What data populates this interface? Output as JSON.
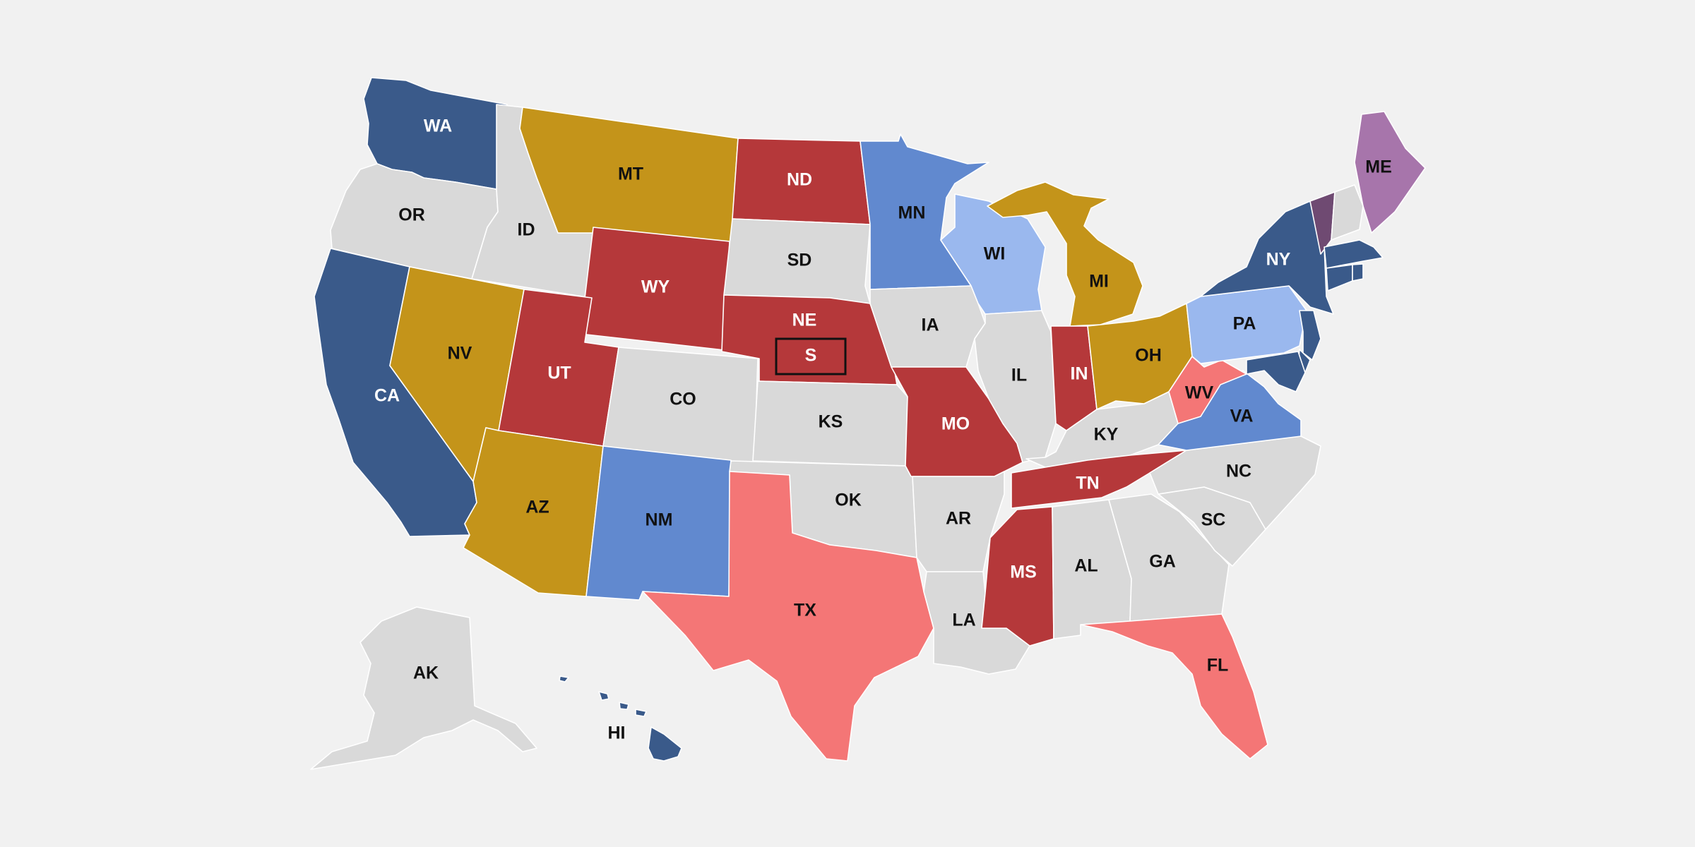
{
  "colors": {
    "background": "#f1f1f1",
    "gray": "#d9d9d9",
    "dark_blue": "#3a5a8a",
    "mid_blue": "#6189cf",
    "light_blue": "#9ab8ee",
    "dark_red": "#b5383a",
    "light_red": "#f47676",
    "gold": "#c4941a",
    "purple": "#a775ab",
    "dark_purple": "#6f4a72"
  },
  "states": [
    {
      "abbr": "WA",
      "fill": "dark_blue",
      "label_color": "#ffffff"
    },
    {
      "abbr": "OR",
      "fill": "gray",
      "label_color": "#111111"
    },
    {
      "abbr": "CA",
      "fill": "dark_blue",
      "label_color": "#ffffff"
    },
    {
      "abbr": "ID",
      "fill": "gray",
      "label_color": "#111111"
    },
    {
      "abbr": "NV",
      "fill": "gold",
      "label_color": "#111111"
    },
    {
      "abbr": "MT",
      "fill": "gold",
      "label_color": "#111111"
    },
    {
      "abbr": "WY",
      "fill": "dark_red",
      "label_color": "#ffffff"
    },
    {
      "abbr": "UT",
      "fill": "dark_red",
      "label_color": "#ffffff"
    },
    {
      "abbr": "AZ",
      "fill": "gold",
      "label_color": "#111111"
    },
    {
      "abbr": "CO",
      "fill": "gray",
      "label_color": "#111111"
    },
    {
      "abbr": "NM",
      "fill": "mid_blue",
      "label_color": "#111111"
    },
    {
      "abbr": "ND",
      "fill": "dark_red",
      "label_color": "#ffffff"
    },
    {
      "abbr": "SD",
      "fill": "gray",
      "label_color": "#111111"
    },
    {
      "abbr": "NE",
      "fill": "dark_red",
      "label_color": "#ffffff"
    },
    {
      "abbr": "KS",
      "fill": "gray",
      "label_color": "#111111"
    },
    {
      "abbr": "OK",
      "fill": "gray",
      "label_color": "#111111"
    },
    {
      "abbr": "TX",
      "fill": "light_red",
      "label_color": "#111111"
    },
    {
      "abbr": "MN",
      "fill": "mid_blue",
      "label_color": "#111111"
    },
    {
      "abbr": "IA",
      "fill": "gray",
      "label_color": "#111111"
    },
    {
      "abbr": "MO",
      "fill": "dark_red",
      "label_color": "#ffffff"
    },
    {
      "abbr": "AR",
      "fill": "gray",
      "label_color": "#111111"
    },
    {
      "abbr": "LA",
      "fill": "gray",
      "label_color": "#111111"
    },
    {
      "abbr": "WI",
      "fill": "light_blue",
      "label_color": "#111111"
    },
    {
      "abbr": "IL",
      "fill": "gray",
      "label_color": "#111111"
    },
    {
      "abbr": "MI",
      "fill": "gold",
      "label_color": "#111111"
    },
    {
      "abbr": "IN",
      "fill": "dark_red",
      "label_color": "#ffffff"
    },
    {
      "abbr": "OH",
      "fill": "gold",
      "label_color": "#111111"
    },
    {
      "abbr": "KY",
      "fill": "gray",
      "label_color": "#111111"
    },
    {
      "abbr": "TN",
      "fill": "dark_red",
      "label_color": "#ffffff"
    },
    {
      "abbr": "MS",
      "fill": "dark_red",
      "label_color": "#ffffff"
    },
    {
      "abbr": "AL",
      "fill": "gray",
      "label_color": "#111111"
    },
    {
      "abbr": "GA",
      "fill": "gray",
      "label_color": "#111111"
    },
    {
      "abbr": "FL",
      "fill": "light_red",
      "label_color": "#111111"
    },
    {
      "abbr": "SC",
      "fill": "gray",
      "label_color": "#111111"
    },
    {
      "abbr": "NC",
      "fill": "gray",
      "label_color": "#111111"
    },
    {
      "abbr": "VA",
      "fill": "mid_blue",
      "label_color": "#111111"
    },
    {
      "abbr": "WV",
      "fill": "light_red",
      "label_color": "#111111"
    },
    {
      "abbr": "PA",
      "fill": "light_blue",
      "label_color": "#111111"
    },
    {
      "abbr": "NY",
      "fill": "dark_blue",
      "label_color": "#ffffff"
    },
    {
      "abbr": "ME",
      "fill": "purple",
      "label_color": "#111111"
    },
    {
      "abbr": "AK",
      "fill": "gray",
      "label_color": "#111111"
    },
    {
      "abbr": "HI",
      "fill": "dark_blue",
      "label_color": "#111111"
    },
    {
      "abbr": "VT",
      "fill": "dark_purple",
      "label": ""
    },
    {
      "abbr": "NH",
      "fill": "gray",
      "label": ""
    },
    {
      "abbr": "MA",
      "fill": "dark_blue",
      "label": ""
    },
    {
      "abbr": "CT",
      "fill": "dark_blue",
      "label": ""
    },
    {
      "abbr": "RI",
      "fill": "dark_blue",
      "label": ""
    },
    {
      "abbr": "NJ",
      "fill": "dark_blue",
      "label": ""
    },
    {
      "abbr": "DE",
      "fill": "dark_blue",
      "label": ""
    },
    {
      "abbr": "MD",
      "fill": "dark_blue",
      "label": ""
    }
  ],
  "special_marker": {
    "label": "S",
    "state": "NE",
    "fill": "dark_red",
    "label_color": "#ffffff"
  }
}
